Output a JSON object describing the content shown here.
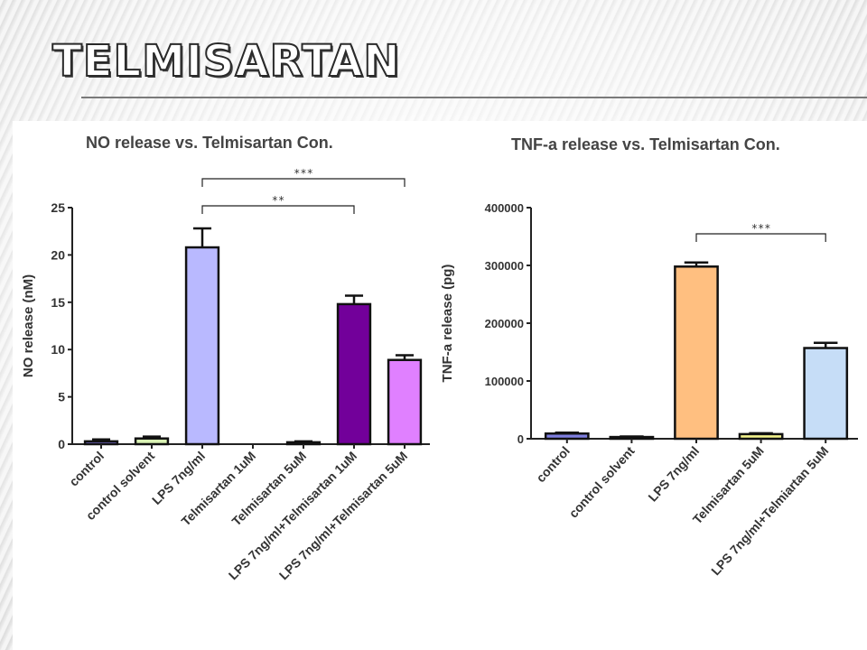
{
  "slide": {
    "title": "TELMISARTAN"
  },
  "chart_data": [
    {
      "type": "bar",
      "title": "NO release vs. Telmisartan Con.",
      "xlabel": "",
      "ylabel": "NO release (nM)",
      "ylim": [
        0,
        25
      ],
      "yticks": [
        "0",
        "5",
        "10",
        "15",
        "20",
        "25"
      ],
      "categories": [
        "control",
        "control solvent",
        "LPS 7ng/ml",
        "Telmisartan 1uM",
        "Telmisartan 5uM",
        "LPS 7ng/ml+Telmisartan 1uM",
        "LPS 7ng/ml+Telmisartan 5uM"
      ],
      "values": [
        0.3,
        0.6,
        20.8,
        0.0,
        0.2,
        14.8,
        8.9
      ],
      "errors": [
        0.2,
        0.2,
        2.0,
        0.0,
        0.1,
        0.9,
        0.5
      ],
      "colors": [
        "#7b6fd6",
        "#d9f2b4",
        "#b9b9ff",
        "#8a8a8a",
        "#555555",
        "#72009a",
        "#e080ff"
      ],
      "significance": [
        {
          "from": 2,
          "to": 6,
          "label": "***"
        },
        {
          "from": 2,
          "to": 5,
          "label": "**"
        }
      ]
    },
    {
      "type": "bar",
      "title": "TNF-a release vs. Telmisartan Con.",
      "xlabel": "",
      "ylabel": "TNF-a release (pg)",
      "ylim": [
        0,
        400000
      ],
      "yticks": [
        "0",
        "100000",
        "200000",
        "300000",
        "400000"
      ],
      "categories": [
        "control",
        "control solvent",
        "LPS 7ng/ml",
        "Telmisartan 5uM",
        "LPS 7ng/ml+Telmiartan 5uM"
      ],
      "values": [
        9000,
        3000,
        298000,
        8000,
        157000
      ],
      "errors": [
        1500,
        1000,
        7000,
        1500,
        9000
      ],
      "colors": [
        "#7f7fe0",
        "#333333",
        "#ffbf80",
        "#f2f28c",
        "#c6ddf7"
      ],
      "significance": [
        {
          "from": 2,
          "to": 4,
          "label": "***"
        }
      ]
    }
  ]
}
